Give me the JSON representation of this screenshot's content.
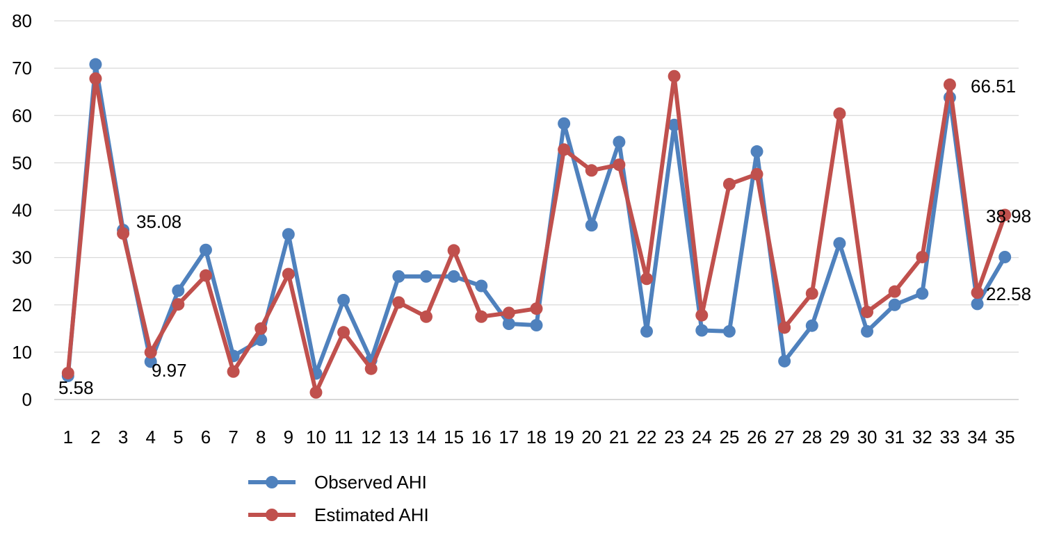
{
  "chart_data": {
    "type": "line",
    "categories": [
      "1",
      "2",
      "3",
      "4",
      "5",
      "6",
      "7",
      "8",
      "9",
      "10",
      "11",
      "12",
      "13",
      "14",
      "15",
      "16",
      "17",
      "18",
      "19",
      "20",
      "21",
      "22",
      "23",
      "24",
      "25",
      "26",
      "27",
      "28",
      "29",
      "30",
      "31",
      "32",
      "33",
      "34",
      "35"
    ],
    "ylim": [
      0,
      80
    ],
    "yticks": [
      "0",
      "10",
      "20",
      "30",
      "40",
      "50",
      "60",
      "70",
      "80"
    ],
    "grid": true,
    "legend_position": "bottom",
    "series": [
      {
        "name": "Observed AHI",
        "color": "#4F81BD",
        "values": [
          5.0,
          70.8,
          35.8,
          8.0,
          23.0,
          31.6,
          9.2,
          12.6,
          34.9,
          5.5,
          21.0,
          8.3,
          26.0,
          26.0,
          26.0,
          24.0,
          16.0,
          15.7,
          58.3,
          36.8,
          54.4,
          14.4,
          58.0,
          14.6,
          14.4,
          52.4,
          8.1,
          15.6,
          33.0,
          14.4,
          20.0,
          22.4,
          63.8,
          20.2,
          30.1
        ]
      },
      {
        "name": "Estimated AHI",
        "color": "#C0504D",
        "values": [
          5.58,
          67.8,
          35.08,
          9.97,
          20.1,
          26.2,
          5.9,
          15.0,
          26.5,
          1.5,
          14.2,
          6.5,
          20.5,
          17.5,
          31.5,
          17.5,
          18.3,
          19.2,
          52.8,
          48.4,
          49.6,
          25.5,
          68.3,
          17.8,
          45.5,
          47.6,
          15.2,
          22.4,
          60.4,
          18.5,
          22.8,
          30.1,
          66.51,
          22.58,
          38.98
        ]
      }
    ],
    "annotations": [
      {
        "text": "5.58"
      },
      {
        "text": "35.08"
      },
      {
        "text": "9.97"
      },
      {
        "text": "66.51"
      },
      {
        "text": "38.98"
      },
      {
        "text": "22.58"
      }
    ]
  }
}
